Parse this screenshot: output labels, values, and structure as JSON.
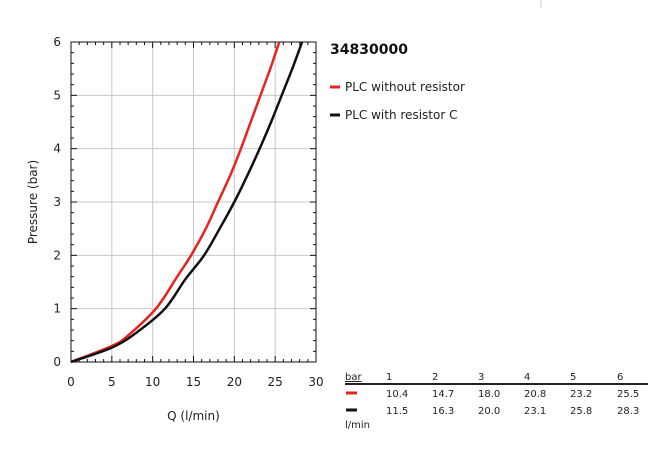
{
  "chart_data": {
    "type": "line",
    "title": "34830000",
    "xlabel": "Q (l/min)",
    "ylabel": "Pressure (bar)",
    "xlim": [
      0,
      30
    ],
    "ylim": [
      0,
      6
    ],
    "xticks": [
      0,
      5,
      10,
      15,
      20,
      25,
      30
    ],
    "yticks": [
      0,
      1,
      2,
      3,
      4,
      5,
      6
    ],
    "grid": true,
    "series": [
      {
        "name": "PLC without resistor",
        "color": "#e8231c",
        "points": [
          [
            0,
            0
          ],
          [
            5,
            0.3
          ],
          [
            7,
            0.5
          ],
          [
            10.4,
            1
          ],
          [
            13,
            1.6
          ],
          [
            14.7,
            2
          ],
          [
            16.5,
            2.5
          ],
          [
            18,
            3
          ],
          [
            19.5,
            3.5
          ],
          [
            20.8,
            4
          ],
          [
            22,
            4.5
          ],
          [
            23.2,
            5
          ],
          [
            24.4,
            5.5
          ],
          [
            25.5,
            6
          ]
        ]
      },
      {
        "name": "PLC with resistor C",
        "color": "#111111",
        "points": [
          [
            0,
            0
          ],
          [
            5,
            0.27
          ],
          [
            8,
            0.55
          ],
          [
            11.5,
            1
          ],
          [
            14,
            1.55
          ],
          [
            16.3,
            2
          ],
          [
            18.2,
            2.5
          ],
          [
            20,
            3
          ],
          [
            21.6,
            3.5
          ],
          [
            23.1,
            4
          ],
          [
            24.5,
            4.5
          ],
          [
            25.8,
            5
          ],
          [
            27.1,
            5.5
          ],
          [
            28.3,
            6
          ]
        ]
      }
    ],
    "flow_table": {
      "header_label": "bar",
      "unit_label": "l/min",
      "pressures": [
        "1",
        "2",
        "3",
        "4",
        "5",
        "6"
      ],
      "rows": [
        {
          "color": "#e8231c",
          "values": [
            "10.4",
            "14.7",
            "18.0",
            "20.8",
            "23.2",
            "25.5"
          ]
        },
        {
          "color": "#111111",
          "values": [
            "11.5",
            "16.3",
            "20.0",
            "23.1",
            "25.8",
            "28.3"
          ]
        }
      ]
    }
  }
}
